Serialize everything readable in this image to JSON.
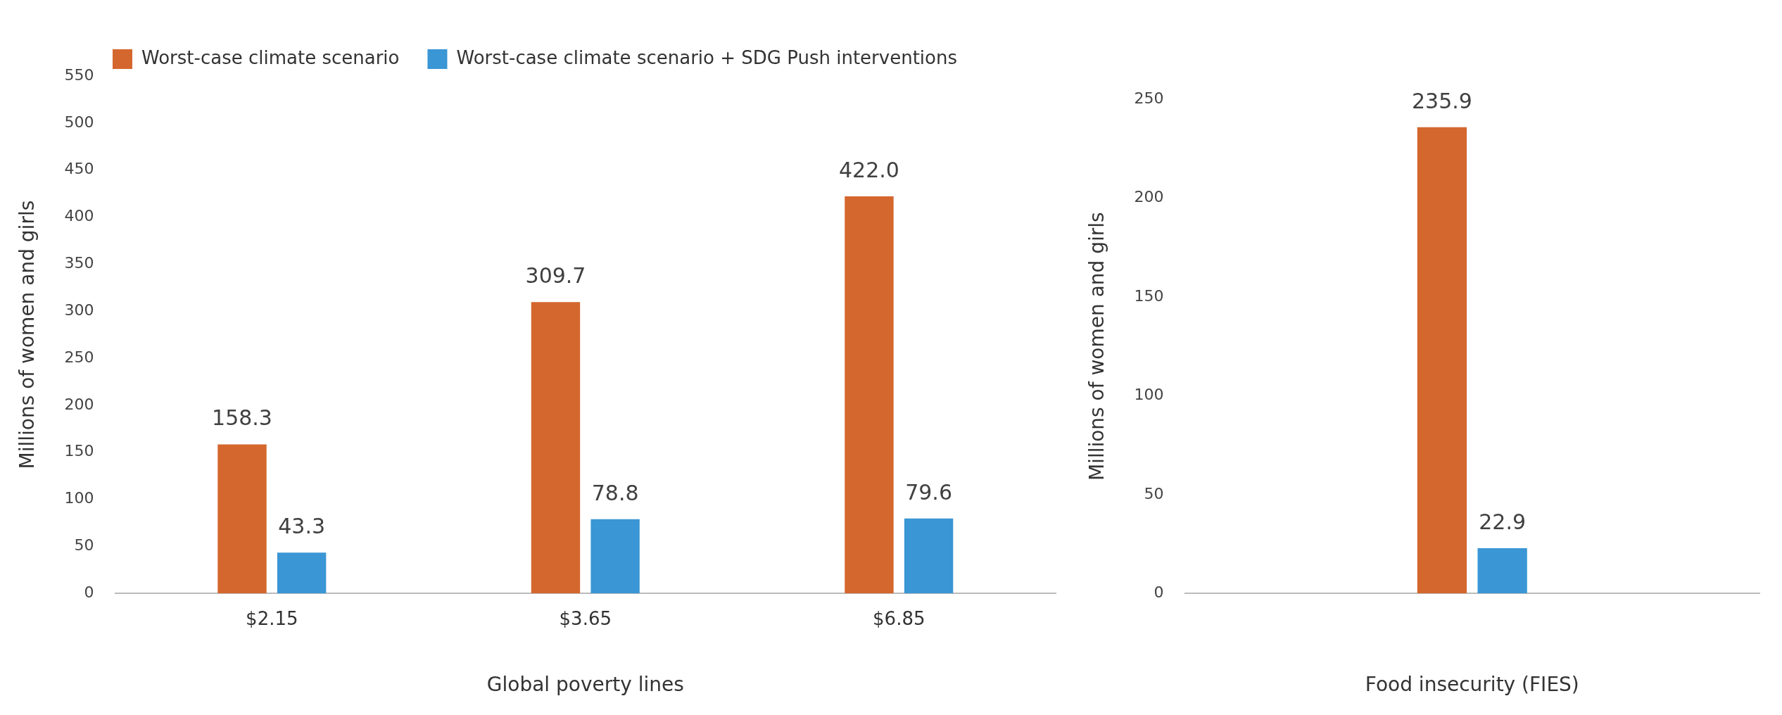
{
  "chart_data": [
    {
      "type": "bar",
      "categories": [
        "$2.15",
        "$3.65",
        "$6.85"
      ],
      "xlabel": "Global poverty lines",
      "ylabel": "Millions of women and girls",
      "ylim": [
        0,
        550
      ],
      "yticks": [
        0,
        50,
        100,
        150,
        200,
        250,
        300,
        350,
        400,
        450,
        500,
        550
      ],
      "grid": false,
      "legend": "top",
      "series": [
        {
          "name": "Worst-case climate scenario",
          "color": "#d4672e",
          "values": [
            158.3,
            309.7,
            422.0
          ],
          "value_labels": [
            "158.3",
            "309.7",
            "422.0"
          ]
        },
        {
          "name": "Worst-case climate scenario + SDG Push interventions",
          "color": "#3a96d4",
          "values": [
            43.3,
            78.8,
            79.6
          ],
          "value_labels": [
            "43.3",
            "78.8",
            "79.6"
          ]
        }
      ]
    },
    {
      "type": "bar",
      "categories": [
        null
      ],
      "xlabel": "Food insecurity (FIES)",
      "ylabel": "Millions of women and girls",
      "ylim": [
        0,
        250
      ],
      "yticks": [
        0,
        50,
        100,
        150,
        200,
        250
      ],
      "grid": false,
      "series": [
        {
          "color": "#d4672e",
          "values": [
            235.9
          ],
          "value_labels": [
            "235.9"
          ]
        },
        {
          "color": "#3a96d4",
          "values": [
            22.9
          ],
          "value_labels": [
            "22.9"
          ]
        }
      ]
    }
  ]
}
